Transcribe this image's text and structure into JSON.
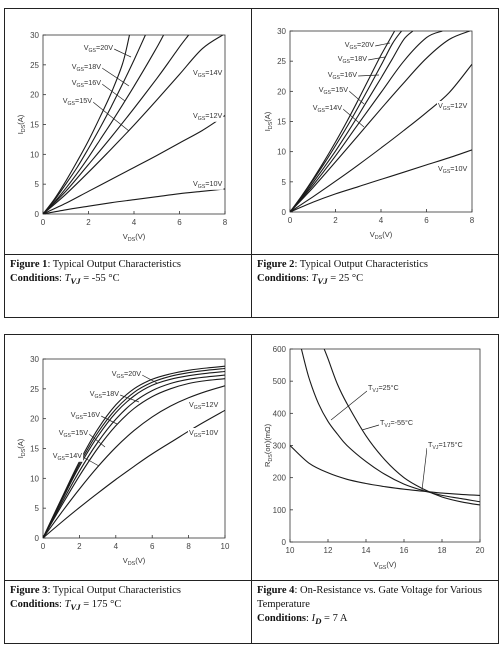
{
  "figures": [
    {
      "caption": {
        "label": "Figure 1",
        "title": "Typical Output Characteristics",
        "conditions_label": "Conditions",
        "conditions_symbol": "T",
        "conditions_sub": "VJ",
        "conditions_value": "= -55 °C"
      }
    },
    {
      "caption": {
        "label": "Figure 2",
        "title": "Typical Output Characteristics",
        "conditions_label": "Conditions",
        "conditions_symbol": "T",
        "conditions_sub": "VJ",
        "conditions_value": "= 25 °C"
      }
    },
    {
      "caption": {
        "label": "Figure 3",
        "title": "Typical Output Characteristics",
        "conditions_label": "Conditions",
        "conditions_symbol": "T",
        "conditions_sub": "VJ",
        "conditions_value": "= 175 °C"
      }
    },
    {
      "caption": {
        "label": "Figure 4",
        "title": "On-Resistance vs. Gate Voltage for Various Temperature",
        "conditions_label": "Conditions",
        "conditions_symbol": "I",
        "conditions_sub": "D",
        "conditions_value": "= 7 A"
      }
    }
  ],
  "chart_data": [
    {
      "type": "line",
      "xlabel": "VDS(V)",
      "ylabel": "IDS(A)",
      "xlim": [
        0,
        8
      ],
      "ylim": [
        0,
        30
      ],
      "xticks": [
        0,
        2,
        4,
        6,
        8
      ],
      "yticks": [
        0,
        5,
        10,
        15,
        20,
        25,
        30
      ],
      "grid": false,
      "series": [
        {
          "name": "VGS=20V",
          "x": [
            0,
            0.5,
            1,
            1.5,
            2,
            2.5,
            3,
            3.5,
            3.8
          ],
          "y": [
            0,
            2.5,
            5.5,
            8.8,
            12.3,
            16.2,
            20.3,
            25.2,
            30
          ]
        },
        {
          "name": "VGS=18V",
          "x": [
            0,
            0.5,
            1,
            1.5,
            2,
            2.5,
            3,
            3.5,
            4,
            4.5
          ],
          "y": [
            0,
            2.3,
            5,
            7.8,
            11,
            14.4,
            18,
            21.8,
            25.8,
            30
          ]
        },
        {
          "name": "VGS=16V",
          "x": [
            0,
            0.5,
            1,
            1.5,
            2,
            2.5,
            3,
            3.5,
            4,
            4.5,
            5,
            5.3
          ],
          "y": [
            0,
            2,
            4.3,
            6.8,
            9.5,
            12.4,
            15.3,
            18.3,
            21.4,
            24.6,
            27.9,
            30
          ]
        },
        {
          "name": "VGS=15V",
          "x": [
            0,
            1,
            2,
            3,
            4,
            5,
            5.5,
            6.0,
            6.4
          ],
          "y": [
            0,
            3.8,
            8.3,
            12.9,
            17.7,
            22.7,
            25.3,
            28.0,
            30
          ]
        },
        {
          "name": "VGS=14V",
          "x": [
            0,
            1,
            2,
            3,
            4,
            5,
            6,
            7,
            7.9
          ],
          "y": [
            0,
            3.3,
            7,
            10.9,
            14.9,
            19.1,
            23.4,
            27.7,
            30
          ]
        },
        {
          "name": "VGS=12V",
          "x": [
            0,
            1,
            2,
            3,
            4,
            5,
            6,
            7,
            8
          ],
          "y": [
            0,
            1.8,
            3.8,
            5.8,
            7.8,
            9.8,
            11.9,
            14,
            16.5
          ]
        },
        {
          "name": "VGS=10V",
          "x": [
            0,
            1,
            2,
            3,
            4,
            5,
            6,
            7,
            8
          ],
          "y": [
            0,
            0.7,
            1.3,
            1.9,
            2.4,
            2.9,
            3.4,
            3.8,
            4.2
          ]
        }
      ],
      "labels": [
        "VGS=20V",
        "VGS=18V",
        "VGS=16V",
        "VGS=15V",
        "VGS=14V",
        "VGS=12V",
        "VGS=10V"
      ]
    },
    {
      "type": "line",
      "xlabel": "VDS(V)",
      "ylabel": "IDS(A)",
      "xlim": [
        0,
        8
      ],
      "ylim": [
        0,
        30
      ],
      "xticks": [
        0,
        2,
        4,
        6,
        8
      ],
      "yticks": [
        0,
        5,
        10,
        15,
        20,
        25,
        30
      ],
      "grid": false,
      "series": [
        {
          "name": "VGS=20V",
          "x": [
            0,
            0.5,
            1,
            1.5,
            2,
            2.5,
            3,
            3.5,
            4,
            4.6
          ],
          "y": [
            0,
            2.6,
            5.4,
            8.4,
            11.6,
            15,
            18.6,
            22.3,
            26,
            30
          ]
        },
        {
          "name": "VGS=18V",
          "x": [
            0,
            0.5,
            1,
            1.5,
            2,
            2.5,
            3,
            3.5,
            4,
            4.5,
            4.9
          ],
          "y": [
            0,
            2.5,
            5.2,
            8,
            11,
            14.1,
            17.4,
            20.8,
            24.3,
            27.9,
            30
          ]
        },
        {
          "name": "VGS=16V",
          "x": [
            0,
            0.5,
            1,
            1.5,
            2,
            2.5,
            3,
            3.5,
            4,
            4.5,
            5,
            5.4
          ],
          "y": [
            0,
            2.3,
            4.8,
            7.4,
            10.1,
            13,
            16,
            19.1,
            22.2,
            25.4,
            28.6,
            30
          ]
        },
        {
          "name": "VGS=15V",
          "x": [
            0,
            1,
            2,
            3,
            4,
            5,
            6,
            6.7
          ],
          "y": [
            0,
            4.4,
            9.3,
            14.6,
            19.8,
            25,
            28.9,
            30
          ]
        },
        {
          "name": "VGS=14V",
          "x": [
            0,
            1,
            2,
            3,
            4,
            5,
            6,
            7,
            7.9
          ],
          "y": [
            0,
            4,
            8.3,
            12.7,
            17.1,
            21.4,
            25.5,
            28.6,
            30
          ]
        },
        {
          "name": "VGS=12V",
          "x": [
            0,
            1,
            2,
            3,
            4,
            5,
            6,
            7,
            8
          ],
          "y": [
            0,
            2.5,
            5.1,
            7.8,
            10.6,
            13.5,
            16.5,
            19.8,
            24.5
          ]
        },
        {
          "name": "VGS=10V",
          "x": [
            0,
            1,
            2,
            3,
            4,
            5,
            6,
            7,
            8
          ],
          "y": [
            0,
            1.6,
            3.0,
            4.2,
            5.4,
            6.6,
            7.8,
            9.0,
            10.3
          ]
        }
      ],
      "labels": [
        "VGS=20V",
        "VGS=18V",
        "VGS=16V",
        "VGS=15V",
        "VGS=14V",
        "VGS=12V",
        "VGS=10V"
      ]
    },
    {
      "type": "line",
      "xlabel": "VDS(V)",
      "ylabel": "IDS(A)",
      "xlim": [
        0,
        10
      ],
      "ylim": [
        0,
        30
      ],
      "xticks": [
        0,
        2,
        4,
        6,
        8,
        10
      ],
      "yticks": [
        0,
        5,
        10,
        15,
        20,
        25,
        30
      ],
      "grid": false,
      "series": [
        {
          "name": "VGS=20V",
          "x": [
            0,
            1,
            2,
            3,
            4,
            5,
            6,
            7,
            8,
            9,
            10
          ],
          "y": [
            0,
            6.5,
            12.8,
            18.2,
            22.3,
            25,
            26.6,
            27.5,
            28.1,
            28.5,
            28.8
          ]
        },
        {
          "name": "VGS=18V",
          "x": [
            0,
            1,
            2,
            3,
            4,
            5,
            6,
            7,
            8,
            9,
            10
          ],
          "y": [
            0,
            6.3,
            12.4,
            17.6,
            21.6,
            24.4,
            26.1,
            27.1,
            27.7,
            28.1,
            28.4
          ]
        },
        {
          "name": "VGS=16V",
          "x": [
            0,
            1,
            2,
            3,
            4,
            5,
            6,
            7,
            8,
            9,
            10
          ],
          "y": [
            0,
            6.1,
            12.0,
            17.0,
            21.0,
            23.8,
            25.6,
            26.6,
            27.2,
            27.6,
            27.9
          ]
        },
        {
          "name": "VGS=15V",
          "x": [
            0,
            1,
            2,
            3,
            4,
            5,
            6,
            7,
            8,
            9,
            10
          ],
          "y": [
            0,
            5.7,
            11.2,
            16.0,
            19.9,
            22.8,
            24.7,
            25.9,
            26.6,
            27.0,
            27.3
          ]
        },
        {
          "name": "VGS=14V",
          "x": [
            0,
            1,
            2,
            3,
            4,
            5,
            6,
            7,
            8,
            9,
            10
          ],
          "y": [
            0,
            5.3,
            10.4,
            15.0,
            18.8,
            21.7,
            23.7,
            25.0,
            25.9,
            26.4,
            26.7
          ]
        },
        {
          "name": "VGS=12V",
          "x": [
            0,
            1,
            2,
            3,
            4,
            5,
            6,
            7,
            8,
            9,
            10
          ],
          "y": [
            0,
            4.2,
            8.2,
            11.9,
            15.2,
            18.0,
            20.3,
            22.1,
            23.5,
            24.6,
            25.5
          ]
        },
        {
          "name": "VGS=10V",
          "x": [
            0,
            1,
            2,
            3,
            4,
            5,
            6,
            7,
            8,
            9,
            10
          ],
          "y": [
            0,
            2.6,
            5.1,
            7.5,
            9.8,
            12.0,
            14.1,
            16.0,
            17.9,
            19.7,
            21.4
          ]
        }
      ],
      "labels": [
        "VGS=20V",
        "VGS=18V",
        "VGS=16V",
        "VGS=15V",
        "VGS=14V",
        "VGS=12V",
        "VGS=10V"
      ]
    },
    {
      "type": "line",
      "xlabel": "VGS(V)",
      "ylabel": "RDS(on)(mΩ)",
      "xlim": [
        10,
        20
      ],
      "ylim": [
        0,
        600
      ],
      "xticks": [
        10,
        12,
        14,
        16,
        18,
        20
      ],
      "yticks": [
        0,
        100,
        200,
        300,
        400,
        500,
        600
      ],
      "grid": false,
      "series": [
        {
          "name": "TVJ=25°C",
          "x": [
            10.6,
            11,
            11.5,
            12,
            12.5,
            13,
            14,
            15,
            16,
            17,
            18,
            19,
            20
          ],
          "y": [
            600,
            510,
            430,
            375,
            335,
            300,
            250,
            210,
            180,
            160,
            145,
            135,
            125
          ]
        },
        {
          "name": "TVJ=-55°C",
          "x": [
            11.8,
            12,
            12.5,
            13,
            14,
            15,
            16,
            17,
            18,
            19,
            20
          ],
          "y": [
            600,
            570,
            490,
            430,
            330,
            255,
            200,
            165,
            140,
            125,
            115
          ]
        },
        {
          "name": "TVJ=175°C",
          "x": [
            10,
            11,
            12,
            13,
            14,
            15,
            16,
            17,
            18,
            19,
            20
          ],
          "y": [
            300,
            245,
            215,
            195,
            182,
            172,
            164,
            158,
            152,
            148,
            145
          ]
        }
      ],
      "labels": [
        "TVJ=25°C",
        "TVJ=-55°C",
        "TVJ=175°C"
      ]
    }
  ]
}
